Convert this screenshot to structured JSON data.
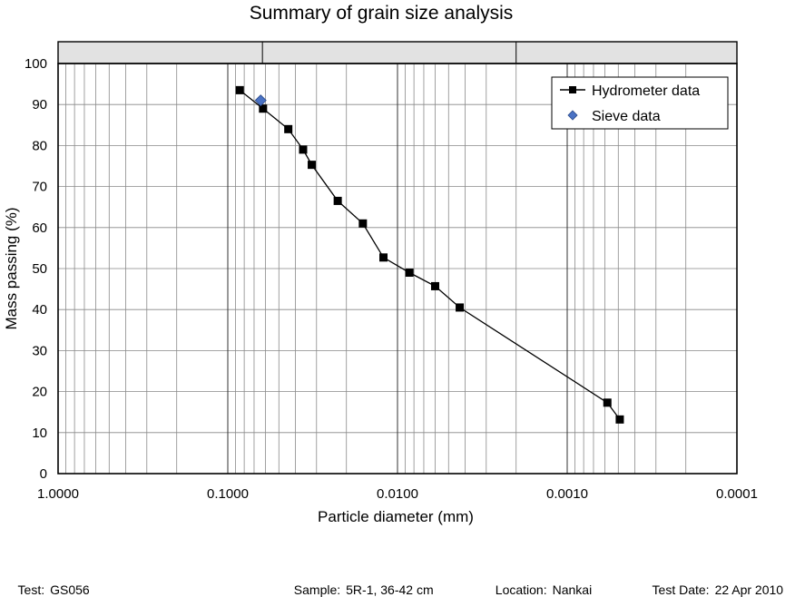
{
  "chart_data": {
    "type": "scatter",
    "title": "Summary of grain size analysis",
    "xlabel": "Particle diameter (mm)",
    "ylabel": "Mass passing (%)",
    "x_scale": "log",
    "x_reversed": true,
    "xlim": [
      1.0,
      0.0001
    ],
    "ylim": [
      0,
      100
    ],
    "x_ticks": [
      1.0,
      0.1,
      0.01,
      0.001,
      0.0001
    ],
    "x_tick_labels": [
      "1.0000",
      "0.1000",
      "0.0100",
      "0.0010",
      "0.0001"
    ],
    "y_ticks": [
      0,
      10,
      20,
      30,
      40,
      50,
      60,
      70,
      80,
      90,
      100
    ],
    "y_tick_labels": [
      "0",
      "10",
      "20",
      "30",
      "40",
      "50",
      "60",
      "70",
      "80",
      "90",
      "100"
    ],
    "grid": true,
    "legend_position": "top-right",
    "top_band_dividers": [
      0.0625,
      0.002
    ],
    "series": [
      {
        "name": "Hydrometer data",
        "marker": "square",
        "line": true,
        "color": "#000000",
        "points": [
          {
            "x": 0.085,
            "y": 93.5
          },
          {
            "x": 0.062,
            "y": 89.0
          },
          {
            "x": 0.044,
            "y": 84.0
          },
          {
            "x": 0.036,
            "y": 79.0
          },
          {
            "x": 0.032,
            "y": 75.3
          },
          {
            "x": 0.0225,
            "y": 66.5
          },
          {
            "x": 0.016,
            "y": 61.0
          },
          {
            "x": 0.0121,
            "y": 52.7
          },
          {
            "x": 0.0085,
            "y": 49.0
          },
          {
            "x": 0.006,
            "y": 45.7
          },
          {
            "x": 0.0043,
            "y": 40.5
          },
          {
            "x": 0.00058,
            "y": 17.3
          },
          {
            "x": 0.00049,
            "y": 13.2
          }
        ]
      },
      {
        "name": "Sieve data",
        "marker": "diamond",
        "line": false,
        "color": "#4a72c4",
        "points": [
          {
            "x": 0.064,
            "y": 91.0
          }
        ]
      }
    ]
  },
  "footer": {
    "test_label": "Test:",
    "test_value": "GS056",
    "sample_label": "Sample:",
    "sample_value": "5R-1, 36-42 cm",
    "location_label": "Location:",
    "location_value": "Nankai",
    "date_label": "Test Date:",
    "date_value": "22 Apr 2010"
  }
}
